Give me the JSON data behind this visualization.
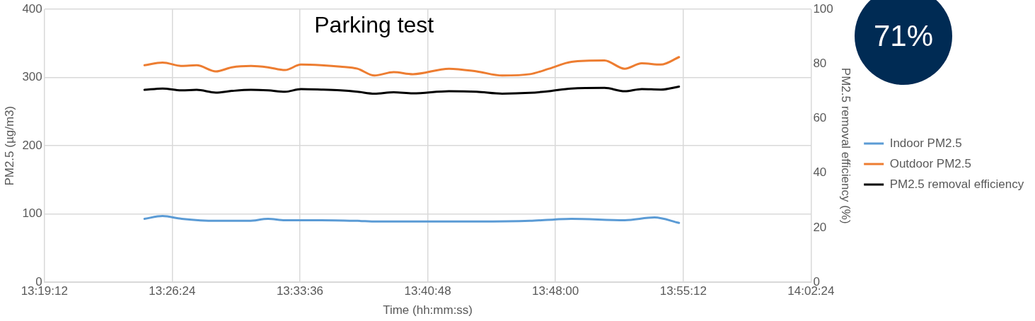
{
  "chart_data": {
    "type": "line",
    "title": "Parking test",
    "xlabel": "Time (hh:mm:ss)",
    "ylabel": "PM2.5 (µg/m3)",
    "y2label": "PM2.5 removal efficiency (%)",
    "annotations": [
      "71%"
    ],
    "x": [
      13.414,
      13.431,
      13.449,
      13.463,
      13.481,
      13.496,
      13.514,
      13.53,
      13.546,
      13.561,
      13.58,
      13.598,
      13.614,
      13.63,
      13.648,
      13.666,
      13.7,
      13.726,
      13.75,
      13.776,
      13.794,
      13.815,
      13.846,
      13.865,
      13.881,
      13.899,
      13.916
    ],
    "series": [
      {
        "name": "Indoor PM2.5",
        "color": "#5b9bd5",
        "x": [
          13.414,
          13.431,
          13.449,
          13.481,
          13.512,
          13.53,
          13.546,
          13.58,
          13.614,
          13.632,
          13.663,
          13.726,
          13.776,
          13.799,
          13.815,
          13.865,
          13.893,
          13.916
        ],
        "values": [
          93,
          97,
          93,
          90,
          90,
          93,
          91,
          91,
          90,
          89,
          89,
          89,
          90,
          92,
          93,
          91,
          95,
          87
        ]
      },
      {
        "name": "Outdoor PM2.5",
        "color": "#ed7d31",
        "values": [
          318,
          322,
          317,
          318,
          309,
          315,
          317,
          315,
          311,
          319,
          318,
          316,
          313,
          303,
          308,
          305,
          313,
          309,
          303,
          305,
          313,
          323,
          325,
          313,
          321,
          319,
          330
        ]
      },
      {
        "name": "PM2.5 removal efficiency",
        "color": "#000000",
        "axis": "y2",
        "values": [
          70.5,
          71.0,
          70.3,
          70.5,
          69.5,
          70.1,
          70.5,
          70.3,
          69.8,
          70.8,
          70.6,
          70.3,
          69.8,
          69.1,
          69.6,
          69.2,
          70.0,
          69.8,
          69.1,
          69.4,
          70.0,
          71.0,
          71.2,
          70.0,
          70.8,
          70.6,
          71.7
        ]
      }
    ],
    "xlim": [
      13.32,
      14.04
    ],
    "xticks": [
      {
        "value": 13.32,
        "label": "13:19:12"
      },
      {
        "value": 13.44,
        "label": "13:26:24"
      },
      {
        "value": 13.56,
        "label": "13:33:36"
      },
      {
        "value": 13.68,
        "label": "13:40:48"
      },
      {
        "value": 13.8,
        "label": "13:48:00"
      },
      {
        "value": 13.92,
        "label": "13:55:12"
      },
      {
        "value": 14.04,
        "label": "14:02:24"
      }
    ],
    "ylim": [
      0,
      400
    ],
    "yticks": [
      0,
      100,
      200,
      300,
      400
    ],
    "y2lim": [
      0,
      100
    ],
    "y2ticks": [
      0,
      20,
      40,
      60,
      80,
      100
    ],
    "grid": true,
    "legend": "right",
    "marker": "none",
    "line_style": "solid"
  }
}
